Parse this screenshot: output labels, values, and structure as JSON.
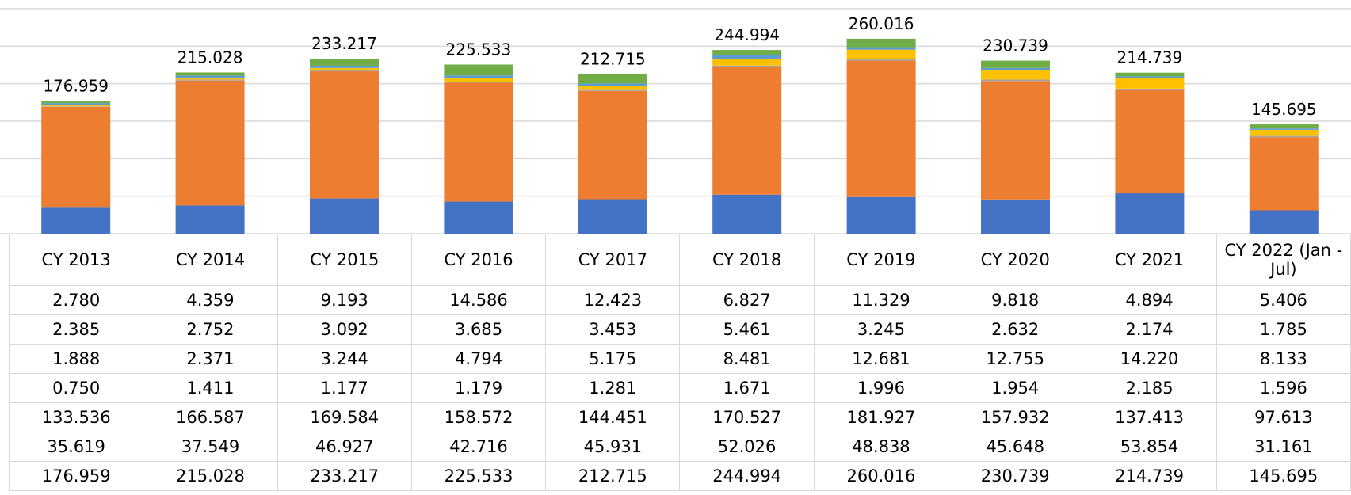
{
  "chart_data": {
    "type": "stacked_bar",
    "categories": [
      "CY 2013",
      "CY 2014",
      "CY 2015",
      "CY 2016",
      "CY 2017",
      "CY 2018",
      "CY 2019",
      "CY 2020",
      "CY 2021",
      "CY 2022 (Jan - Jul)"
    ],
    "series": [
      {
        "color": "#70ad47",
        "values": [
          2.78,
          4.359,
          9.193,
          14.586,
          12.423,
          6.827,
          11.329,
          9.818,
          4.894,
          5.406
        ],
        "value_labels": [
          "2.780",
          "4.359",
          "9.193",
          "14.586",
          "12.423",
          "6.827",
          "11.329",
          "9.818",
          "4.894",
          "5.406"
        ]
      },
      {
        "color": "#5b9bd5",
        "values": [
          2.385,
          2.752,
          3.092,
          3.685,
          3.453,
          5.461,
          3.245,
          2.632,
          2.174,
          1.785
        ],
        "value_labels": [
          "2.385",
          "2.752",
          "3.092",
          "3.685",
          "3.453",
          "5.461",
          "3.245",
          "2.632",
          "2.174",
          "1.785"
        ]
      },
      {
        "color": "#ffc000",
        "values": [
          1.888,
          2.371,
          3.244,
          4.794,
          5.175,
          8.481,
          12.681,
          12.755,
          14.22,
          8.133
        ],
        "value_labels": [
          "1.888",
          "2.371",
          "3.244",
          "4.794",
          "5.175",
          "8.481",
          "12.681",
          "12.755",
          "14.220",
          "8.133"
        ]
      },
      {
        "color": "#a5a5a5",
        "values": [
          0.75,
          1.411,
          1.177,
          1.179,
          1.281,
          1.671,
          1.996,
          1.954,
          2.185,
          1.596
        ],
        "value_labels": [
          "0.750",
          "1.411",
          "1.177",
          "1.179",
          "1.281",
          "1.671",
          "1.996",
          "1.954",
          "2.185",
          "1.596"
        ]
      },
      {
        "color": "#ed7d31",
        "values": [
          133.536,
          166.587,
          169.584,
          158.572,
          144.451,
          170.527,
          181.927,
          157.932,
          137.413,
          97.613
        ],
        "value_labels": [
          "133.536",
          "166.587",
          "169.584",
          "158.572",
          "144.451",
          "170.527",
          "181.927",
          "157.932",
          "137.413",
          "97.613"
        ]
      },
      {
        "color": "#4472c4",
        "values": [
          35.619,
          37.549,
          46.927,
          42.716,
          45.931,
          52.026,
          48.838,
          45.648,
          53.854,
          31.161
        ],
        "value_labels": [
          "35.619",
          "37.549",
          "46.927",
          "42.716",
          "45.931",
          "52.026",
          "48.838",
          "45.648",
          "53.854",
          "31.161"
        ]
      }
    ],
    "totals": [
      176.959,
      215.028,
      233.217,
      225.533,
      212.715,
      244.994,
      260.016,
      230.739,
      214.739,
      145.695
    ],
    "total_labels": [
      "176.959",
      "215.028",
      "233.217",
      "225.533",
      "212.715",
      "244.994",
      "260.016",
      "230.739",
      "214.739",
      "145.695"
    ],
    "ylim": [
      0,
      300
    ],
    "yticks": [
      0,
      50,
      100,
      150,
      200,
      250,
      300
    ],
    "grid": true
  }
}
